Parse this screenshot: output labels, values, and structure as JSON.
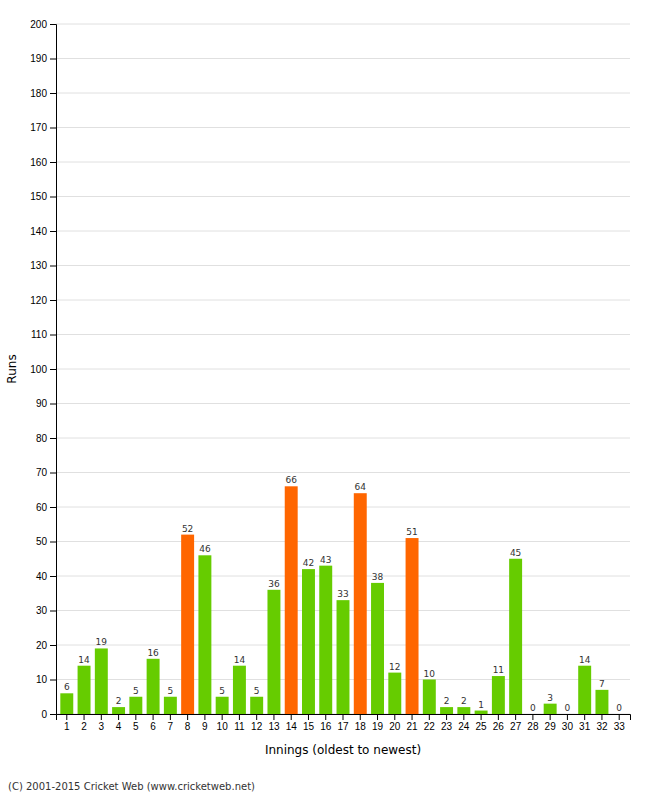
{
  "chart_data": {
    "type": "bar",
    "xlabel": "Innings (oldest to newest)",
    "ylabel": "Runs",
    "categories": [
      "1",
      "2",
      "3",
      "4",
      "5",
      "6",
      "7",
      "8",
      "9",
      "10",
      "11",
      "12",
      "13",
      "14",
      "15",
      "16",
      "17",
      "18",
      "19",
      "20",
      "21",
      "22",
      "23",
      "24",
      "25",
      "26",
      "27",
      "28",
      "29",
      "30",
      "31",
      "32",
      "33"
    ],
    "values": [
      6,
      14,
      19,
      2,
      5,
      16,
      5,
      52,
      46,
      5,
      14,
      5,
      36,
      66,
      42,
      43,
      33,
      64,
      38,
      12,
      51,
      10,
      2,
      2,
      1,
      11,
      45,
      0,
      3,
      0,
      14,
      7,
      0
    ],
    "colors": [
      "#66cc00",
      "#66cc00",
      "#66cc00",
      "#66cc00",
      "#66cc00",
      "#66cc00",
      "#66cc00",
      "#ff6600",
      "#66cc00",
      "#66cc00",
      "#66cc00",
      "#66cc00",
      "#66cc00",
      "#ff6600",
      "#66cc00",
      "#66cc00",
      "#66cc00",
      "#ff6600",
      "#66cc00",
      "#66cc00",
      "#ff6600",
      "#66cc00",
      "#66cc00",
      "#66cc00",
      "#66cc00",
      "#66cc00",
      "#66cc00",
      "#66cc00",
      "#66cc00",
      "#66cc00",
      "#66cc00",
      "#66cc00",
      "#66cc00"
    ],
    "ylim": [
      0,
      200
    ],
    "yticks": [
      0,
      10,
      20,
      30,
      40,
      50,
      60,
      70,
      80,
      90,
      100,
      110,
      120,
      130,
      140,
      150,
      160,
      170,
      180,
      190,
      200
    ],
    "grid": true,
    "data_labels": true,
    "annotations": [
      "(C) 2001-2015 Cricket Web (www.cricketweb.net)"
    ]
  }
}
